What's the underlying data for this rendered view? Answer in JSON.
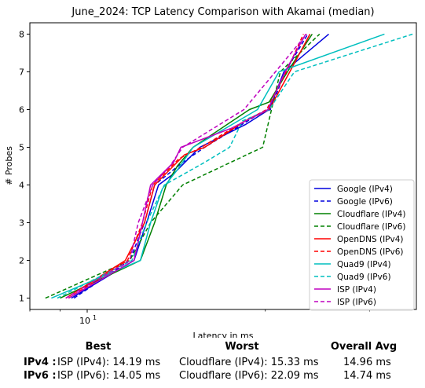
{
  "chart_data": {
    "type": "line",
    "title": "June_2024: TCP Latency Comparison with Akamai (median)",
    "xlabel": "Latency in ms",
    "ylabel": "# Probes",
    "xscale": "log",
    "xlim": [
      8.0,
      36.0
    ],
    "ylim": [
      0.7,
      8.3
    ],
    "xticks": [
      {
        "value": 10,
        "label": "10",
        "sup": "1"
      }
    ],
    "yticks": [
      1,
      2,
      3,
      4,
      5,
      6,
      7,
      8
    ],
    "grid": false,
    "legend_position": "lower right",
    "series": [
      {
        "name": "Google (IPv4)",
        "color": "#0000dd",
        "style": "solid",
        "points": [
          [
            9.4,
            1
          ],
          [
            12.0,
            2
          ],
          [
            12.6,
            3
          ],
          [
            13.2,
            4
          ],
          [
            14.0,
            4.3
          ],
          [
            15.5,
            5
          ],
          [
            18.5,
            5.6
          ],
          [
            20.3,
            6
          ],
          [
            21.5,
            7
          ],
          [
            25.6,
            8
          ]
        ]
      },
      {
        "name": "Google (IPv6)",
        "color": "#0000dd",
        "style": "dashed",
        "points": [
          [
            9.5,
            1
          ],
          [
            11.8,
            2
          ],
          [
            12.5,
            3
          ],
          [
            13.0,
            4
          ],
          [
            14.5,
            4.6
          ],
          [
            15.8,
            5
          ],
          [
            19.6,
            5.9
          ],
          [
            20.4,
            6.0
          ],
          [
            21.6,
            7
          ],
          [
            23.6,
            8
          ]
        ]
      },
      {
        "name": "Cloudflare (IPv4)",
        "color": "#008000",
        "style": "solid",
        "points": [
          [
            9.0,
            1
          ],
          [
            12.3,
            2
          ],
          [
            13.0,
            3
          ],
          [
            13.6,
            4
          ],
          [
            14.2,
            4.5
          ],
          [
            15.1,
            5
          ],
          [
            18.8,
            6
          ],
          [
            20.3,
            6.2
          ],
          [
            21.8,
            7
          ],
          [
            24.0,
            8
          ]
        ]
      },
      {
        "name": "Cloudflare (IPv6)",
        "color": "#008000",
        "style": "dashed",
        "points": [
          [
            8.5,
            1
          ],
          [
            11.8,
            2
          ],
          [
            12.8,
            3
          ],
          [
            14.5,
            4
          ],
          [
            19.8,
            5
          ],
          [
            21.2,
            7
          ],
          [
            24.7,
            8
          ]
        ]
      },
      {
        "name": "OpenDNS (IPv4)",
        "color": "#ff0000",
        "style": "solid",
        "points": [
          [
            9.2,
            1
          ],
          [
            11.6,
            2
          ],
          [
            12.5,
            3
          ],
          [
            13.0,
            4
          ],
          [
            14.6,
            4.8
          ],
          [
            15.8,
            5
          ],
          [
            18.5,
            5.7
          ],
          [
            20.3,
            6
          ],
          [
            22.0,
            7
          ],
          [
            23.8,
            8
          ]
        ]
      },
      {
        "name": "OpenDNS (IPv6)",
        "color": "#ff0000",
        "style": "dashed",
        "points": [
          [
            9.3,
            1
          ],
          [
            11.7,
            2
          ],
          [
            12.4,
            3
          ],
          [
            12.9,
            4
          ],
          [
            14.3,
            4.7
          ],
          [
            15.6,
            5
          ],
          [
            18.0,
            5.6
          ],
          [
            20.1,
            6
          ],
          [
            21.7,
            7
          ],
          [
            23.2,
            8
          ]
        ]
      },
      {
        "name": "Quad9 (IPv4)",
        "color": "#00bfbf",
        "style": "solid",
        "points": [
          [
            8.7,
            1
          ],
          [
            12.3,
            2
          ],
          [
            12.8,
            3
          ],
          [
            13.4,
            3.9
          ],
          [
            14.2,
            4.4
          ],
          [
            15.1,
            5
          ],
          [
            19.4,
            6
          ],
          [
            21.1,
            7
          ],
          [
            31.8,
            8
          ]
        ]
      },
      {
        "name": "Quad9 (IPv6)",
        "color": "#00bfbf",
        "style": "dashed",
        "points": [
          [
            8.9,
            1
          ],
          [
            11.9,
            2
          ],
          [
            12.6,
            3
          ],
          [
            13.5,
            4
          ],
          [
            15.8,
            4.6
          ],
          [
            17.4,
            5
          ],
          [
            18.3,
            5.7
          ],
          [
            20.3,
            6
          ],
          [
            22.4,
            7
          ],
          [
            35.5,
            8
          ]
        ]
      },
      {
        "name": "ISP (IPv4)",
        "color": "#bf00bf",
        "style": "solid",
        "points": [
          [
            9.3,
            1
          ],
          [
            12.0,
            2
          ],
          [
            12.4,
            3
          ],
          [
            12.8,
            4
          ],
          [
            14.0,
            4.6
          ],
          [
            14.4,
            5
          ],
          [
            17.5,
            5.5
          ],
          [
            20.2,
            6
          ],
          [
            21.6,
            7
          ],
          [
            23.4,
            8
          ]
        ]
      },
      {
        "name": "ISP (IPv6)",
        "color": "#bf00bf",
        "style": "dashed",
        "points": [
          [
            9.2,
            1
          ],
          [
            11.8,
            2
          ],
          [
            12.2,
            3
          ],
          [
            12.9,
            4
          ],
          [
            13.8,
            4.5
          ],
          [
            14.5,
            5
          ],
          [
            18.4,
            6
          ],
          [
            20.8,
            7
          ],
          [
            23.5,
            8
          ]
        ]
      }
    ]
  },
  "summary": {
    "headers": {
      "best": "Best",
      "worst": "Worst",
      "avg": "Overall Avg"
    },
    "rows": [
      {
        "label": "IPv4 :",
        "best": "ISP (IPv4): 14.19 ms",
        "worst": "Cloudflare (IPv4): 15.33 ms",
        "avg": "14.96 ms"
      },
      {
        "label": "IPv6 :",
        "best": "ISP (IPv6): 14.05 ms",
        "worst": "Cloudflare (IPv6): 22.09 ms",
        "avg": "14.74 ms"
      }
    ]
  }
}
